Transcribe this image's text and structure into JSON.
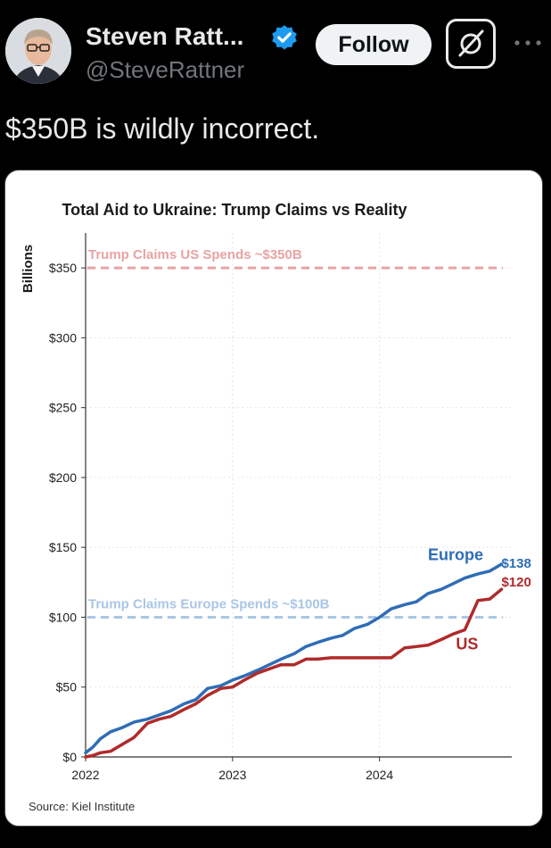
{
  "tweet": {
    "author_name": "Steven Ratt...",
    "handle": "@SteveRattner",
    "follow_label": "Follow",
    "text": "$350B is wildly incorrect."
  },
  "icons": {
    "avatar": "avatar-photo",
    "verified": "verified-badge-icon",
    "grok": "grok-icon",
    "more": "more-options-icon"
  },
  "colors": {
    "verified": "#1d9bf0",
    "europe": "#2f6db5",
    "us": "#b02a2a",
    "trump_us": "#e8a3a3",
    "trump_europe": "#a9c6e6"
  },
  "chart_data": {
    "type": "line",
    "title": "Total Aid to Ukraine: Trump Claims vs Reality",
    "ylabel": "Billions",
    "ylim": [
      0,
      375
    ],
    "xlim": [
      2022,
      2024.9
    ],
    "x_ticks": [
      "2022",
      "2023",
      "2024"
    ],
    "y_ticks": [
      "$0",
      "$50",
      "$100",
      "$150",
      "$200",
      "$250",
      "$300",
      "$350"
    ],
    "source": "Source: Kiel Institute",
    "reference_lines": [
      {
        "label": "Trump Claims US Spends ~$350B",
        "value": 350
      },
      {
        "label": "Trump Claims Europe Spends ~$100B",
        "value": 100
      }
    ],
    "series": [
      {
        "name": "Europe",
        "end_label": "$138",
        "x": [
          2022,
          2022.05,
          2022.1,
          2022.17,
          2022.25,
          2022.33,
          2022.42,
          2022.5,
          2022.58,
          2022.67,
          2022.75,
          2022.83,
          2022.92,
          2023,
          2023.08,
          2023.17,
          2023.25,
          2023.33,
          2023.42,
          2023.5,
          2023.58,
          2023.67,
          2023.75,
          2023.83,
          2023.92,
          2024,
          2024.08,
          2024.17,
          2024.25,
          2024.33,
          2024.42,
          2024.5,
          2024.58,
          2024.67,
          2024.75,
          2024.83
        ],
        "values": [
          3,
          7,
          13,
          18,
          21,
          25,
          27,
          30,
          33,
          38,
          41,
          49,
          51,
          55,
          58,
          62,
          66,
          70,
          74,
          79,
          82,
          85,
          87,
          92,
          95,
          100,
          106,
          109,
          111,
          117,
          120,
          124,
          128,
          131,
          133,
          138
        ]
      },
      {
        "name": "US",
        "end_label": "$120",
        "x": [
          2022,
          2022.05,
          2022.1,
          2022.17,
          2022.25,
          2022.33,
          2022.42,
          2022.5,
          2022.58,
          2022.67,
          2022.75,
          2022.83,
          2022.92,
          2023,
          2023.08,
          2023.17,
          2023.25,
          2023.33,
          2023.42,
          2023.5,
          2023.58,
          2023.67,
          2023.75,
          2023.83,
          2023.92,
          2024,
          2024.08,
          2024.17,
          2024.25,
          2024.33,
          2024.42,
          2024.5,
          2024.58,
          2024.67,
          2024.75,
          2024.83
        ],
        "values": [
          0,
          1,
          3,
          4,
          9,
          14,
          24,
          27,
          29,
          34,
          38,
          44,
          49,
          50,
          55,
          60,
          63,
          66,
          66,
          70,
          70,
          71,
          71,
          71,
          71,
          71,
          71,
          78,
          79,
          80,
          84,
          88,
          91,
          112,
          113,
          120
        ]
      }
    ]
  }
}
